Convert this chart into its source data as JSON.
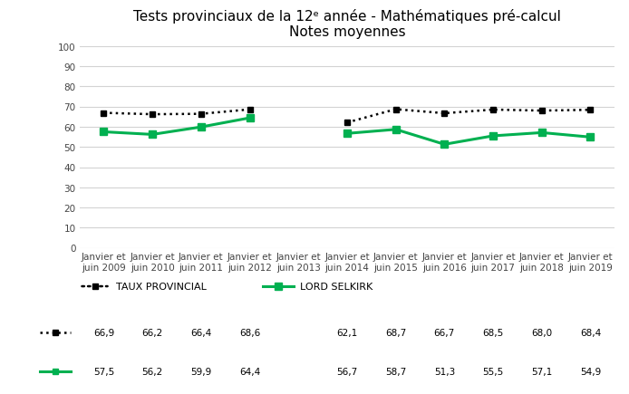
{
  "title_line1": "Tests provinciaux de la 12ᵉ année - Mathématiques pré-calcul",
  "title_line2": "Notes moyennes",
  "categories": [
    "Janvier et\njuin 2009",
    "Janvier et\njuin 2010",
    "Janvier et\njuin 2011",
    "Janvier et\njuin 2012",
    "Janvier et\njuin 2013",
    "Janvier et\njuin 2014",
    "Janvier et\njuin 2015",
    "Janvier et\njuin 2016",
    "Janvier et\njuin 2017",
    "Janvier et\njuin 2018",
    "Janvier et\njuin 2019"
  ],
  "provincial": [
    66.9,
    66.2,
    66.4,
    68.6,
    null,
    62.1,
    68.7,
    66.7,
    68.5,
    68.0,
    68.4
  ],
  "selkirk": [
    57.5,
    56.2,
    59.9,
    64.4,
    null,
    56.7,
    58.7,
    51.3,
    55.5,
    57.1,
    54.9
  ],
  "provincial_color": "#000000",
  "selkirk_color": "#00b050",
  "provincial_label": "TAUX PROVINCIAL",
  "selkirk_label": "LORD SELKIRK",
  "ylim": [
    0,
    100
  ],
  "yticks": [
    0,
    10,
    20,
    30,
    40,
    50,
    60,
    70,
    80,
    90,
    100
  ],
  "background_color": "#ffffff",
  "grid_color": "#d3d3d3",
  "title_fontsize": 11,
  "tick_fontsize": 7.5,
  "legend_fontsize": 8,
  "table_fontsize": 7.5
}
